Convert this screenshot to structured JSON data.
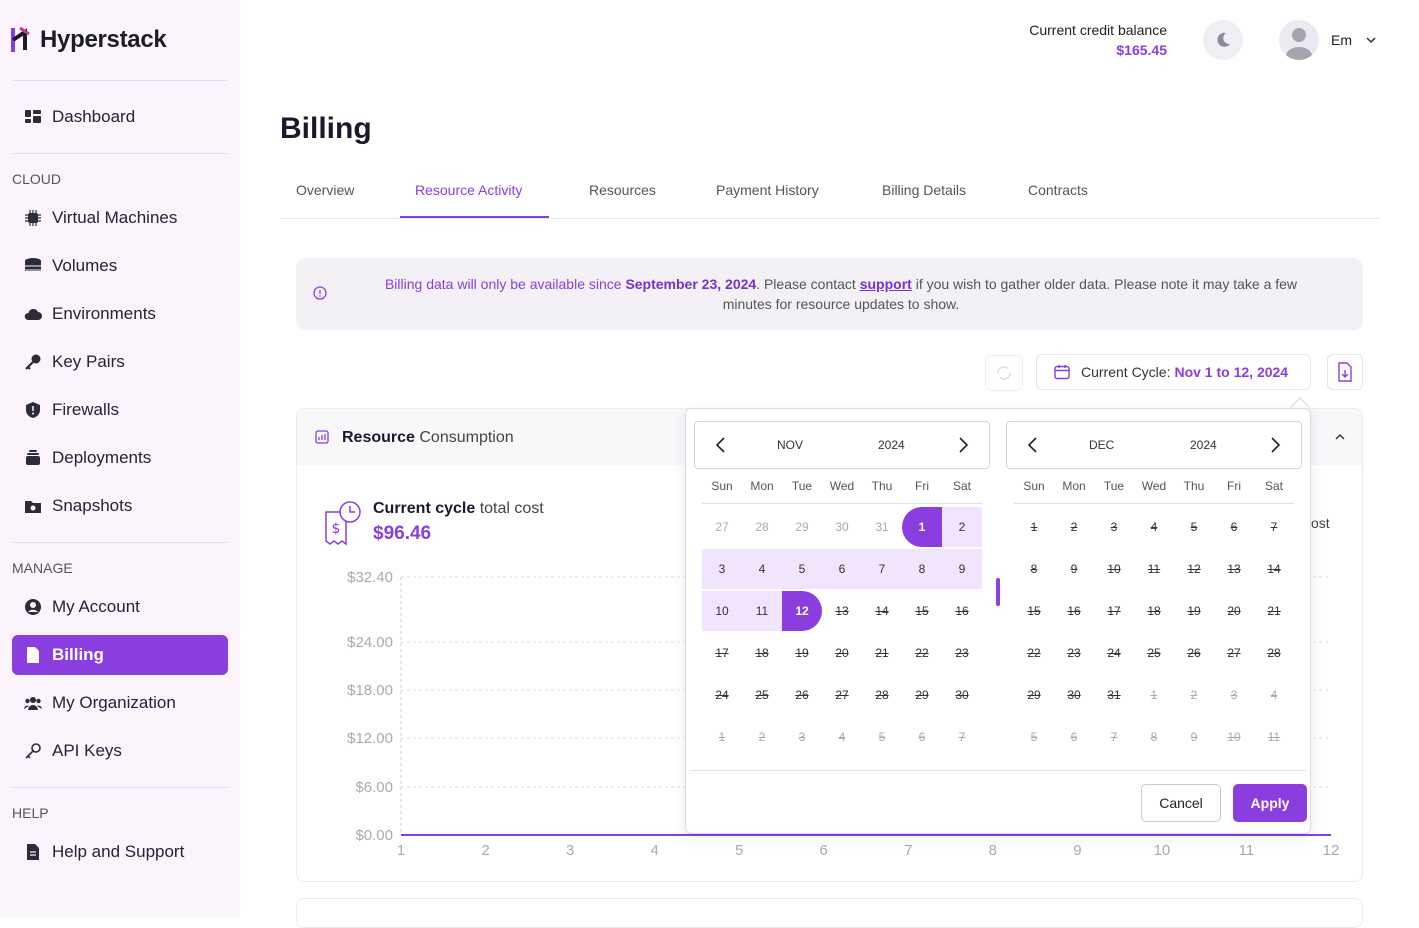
{
  "brand": {
    "name": "Hyperstack"
  },
  "sidebar": {
    "items_top": [
      {
        "label": "Dashboard",
        "icon": "dashboard-icon"
      }
    ],
    "sections": [
      {
        "title": "CLOUD",
        "items": [
          {
            "label": "Virtual Machines",
            "icon": "chip-icon"
          },
          {
            "label": "Volumes",
            "icon": "database-icon"
          },
          {
            "label": "Environments",
            "icon": "cloud-icon"
          },
          {
            "label": "Key Pairs",
            "icon": "key-icon"
          },
          {
            "label": "Firewalls",
            "icon": "shield-icon"
          },
          {
            "label": "Deployments",
            "icon": "stack-icon"
          },
          {
            "label": "Snapshots",
            "icon": "camera-folder-icon"
          }
        ]
      },
      {
        "title": "MANAGE",
        "items": [
          {
            "label": "My Account",
            "icon": "user-circle-icon"
          },
          {
            "label": "Billing",
            "icon": "document-icon",
            "active": true
          },
          {
            "label": "My Organization",
            "icon": "users-icon"
          },
          {
            "label": "API Keys",
            "icon": "key-outline-icon"
          }
        ]
      },
      {
        "title": "HELP",
        "items": [
          {
            "label": "Help and Support",
            "icon": "document-icon"
          }
        ]
      }
    ]
  },
  "topbar": {
    "credit_label": "Current credit balance",
    "credit_value": "$165.45",
    "user_name": "Em"
  },
  "page": {
    "title": "Billing"
  },
  "tabs": [
    "Overview",
    "Resource Activity",
    "Resources",
    "Payment History",
    "Billing Details",
    "Contracts"
  ],
  "active_tab": "Resource Activity",
  "notice": {
    "part1": "Billing data will only be available since ",
    "date": "September 23, 2024",
    "part2": ". Please contact ",
    "link": "support",
    "part3": " if you wish to gather older data. Please note it may take a few",
    "part4": "minutes for resource updates to show."
  },
  "cycle": {
    "label": "Current Cycle:",
    "value": "Nov 1 to 12, 2024"
  },
  "card": {
    "title_bold": "Resource",
    "title_rest": " Consumption"
  },
  "cost": {
    "label_bold": "Current cycle",
    "label_rest": " total cost",
    "value": "$96.46"
  },
  "peek_text": "ost",
  "chart_data": {
    "type": "line",
    "x": [
      1,
      2,
      3,
      4,
      5,
      6,
      7,
      8,
      9,
      10,
      11,
      12
    ],
    "y_ticks": [
      "$32.40",
      "$24.00",
      "$18.00",
      "$12.00",
      "$6.00",
      "$0.00"
    ],
    "ylim": [
      0,
      32.4
    ],
    "series": [
      {
        "values": [
          0,
          0,
          0,
          0,
          0,
          0,
          0,
          0,
          0,
          0,
          0,
          0
        ],
        "color": "#8a3ee0"
      }
    ]
  },
  "datepicker": {
    "weekdays": [
      "Sun",
      "Mon",
      "Tue",
      "Wed",
      "Thu",
      "Fri",
      "Sat"
    ],
    "left": {
      "month": "NOV",
      "year": "2024"
    },
    "right": {
      "month": "DEC",
      "year": "2024"
    },
    "cancel": "Cancel",
    "apply": "Apply"
  },
  "colors": {
    "accent": "#8a3ee0",
    "range": "#f1e4fd"
  }
}
